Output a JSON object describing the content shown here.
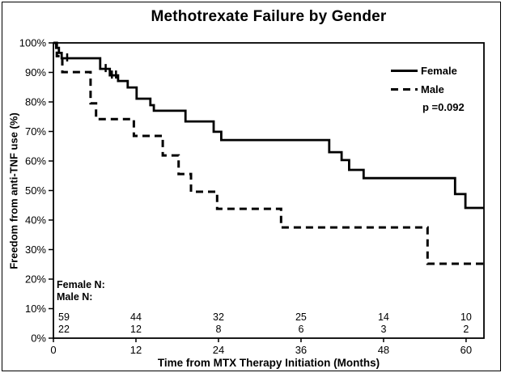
{
  "figure": {
    "title": "Methotrexate Failure by Gender"
  },
  "legend": {
    "items": [
      {
        "label": "Female",
        "style": "solid"
      },
      {
        "label": "Male",
        "style": "dashed"
      }
    ],
    "p_value": "p =0.092"
  },
  "colors": {
    "line": "#000000",
    "background": "#ffffff"
  },
  "chart_data": {
    "type": "line",
    "subtype": "kaplan-meier-step",
    "title": "Methotrexate Failure by Gender",
    "xlabel": "Time from MTX Therapy Initiation (Months)",
    "ylabel": "Freedom from anti-TNF use (%)",
    "xlim": [
      0,
      62.6
    ],
    "ylim": [
      0,
      100
    ],
    "x_ticks": [
      0,
      12,
      24,
      36,
      48,
      60
    ],
    "y_tick_labels": [
      "0%",
      "10%",
      "20%",
      "30%",
      "40%",
      "50%",
      "60%",
      "70%",
      "80%",
      "90%",
      "100%"
    ],
    "grid": false,
    "legend_position": "top-right-inside",
    "annotation": "p =0.092",
    "series": [
      {
        "name": "Female",
        "line_style": "solid",
        "color": "#000000",
        "points": [
          [
            0,
            100
          ],
          [
            0.4,
            98.3
          ],
          [
            0.8,
            96.6
          ],
          [
            1.2,
            94.8
          ],
          [
            6.8,
            91.2
          ],
          [
            8.2,
            89.0
          ],
          [
            9.4,
            87.1
          ],
          [
            10.8,
            84.9
          ],
          [
            12.1,
            81.1
          ],
          [
            14.1,
            78.9
          ],
          [
            14.6,
            77.0
          ],
          [
            19.2,
            73.4
          ],
          [
            23.3,
            69.9
          ],
          [
            24.4,
            67.1
          ],
          [
            40.1,
            63.0
          ],
          [
            41.9,
            60.3
          ],
          [
            43.0,
            57.0
          ],
          [
            45.1,
            54.2
          ],
          [
            58.4,
            48.8
          ],
          [
            59.9,
            44.1
          ],
          [
            62.6,
            44.1
          ]
        ],
        "censor_marks": [
          [
            2.0,
            94.8
          ],
          [
            7.6,
            91.2
          ],
          [
            8.5,
            89.0
          ],
          [
            9.1,
            89.0
          ]
        ]
      },
      {
        "name": "Male",
        "line_style": "dashed",
        "color": "#000000",
        "points": [
          [
            0,
            100
          ],
          [
            0.5,
            95.5
          ],
          [
            1.3,
            90.1
          ],
          [
            5.4,
            79.5
          ],
          [
            6.2,
            74.2
          ],
          [
            11.7,
            68.5
          ],
          [
            15.9,
            61.9
          ],
          [
            18.2,
            55.6
          ],
          [
            20.0,
            49.6
          ],
          [
            23.8,
            43.8
          ],
          [
            33.1,
            37.5
          ],
          [
            54.4,
            25.2
          ],
          [
            62.6,
            25.2
          ]
        ],
        "censor_marks": []
      }
    ],
    "risk_table": {
      "row_labels": [
        "Female N:",
        "Male N:"
      ],
      "time_points": [
        0,
        12,
        24,
        36,
        48,
        60
      ],
      "rows": [
        [
          59,
          44,
          32,
          25,
          14,
          10
        ],
        [
          22,
          12,
          8,
          6,
          3,
          2
        ]
      ]
    }
  }
}
